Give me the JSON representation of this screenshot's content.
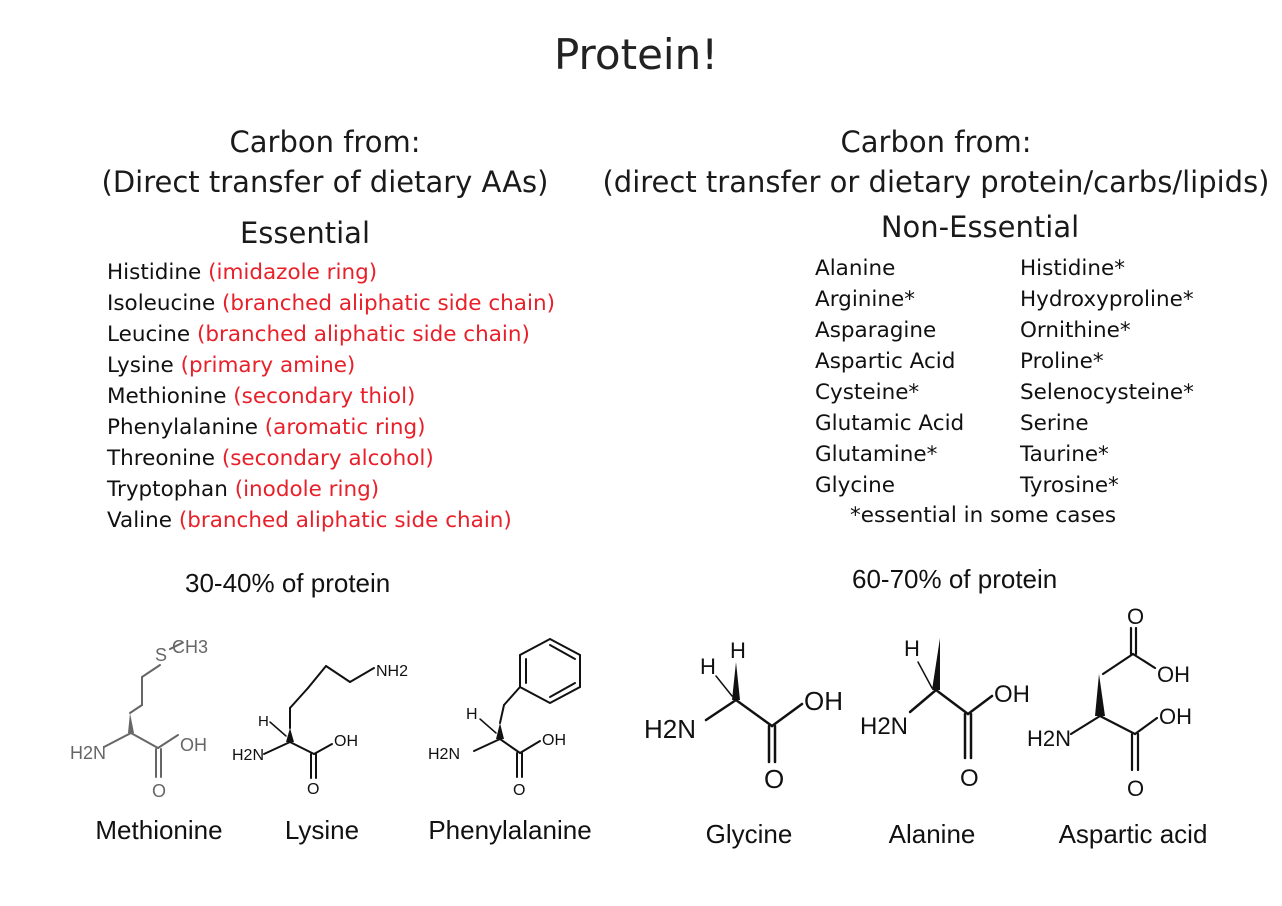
{
  "title": "Protein!",
  "left": {
    "header_line1": "Carbon from:",
    "header_line2": "(Direct transfer of dietary AAs)",
    "category": "Essential",
    "items": [
      {
        "name": "Histidine",
        "note": "(imidazole ring)"
      },
      {
        "name": "Isoleucine",
        "note": "(branched aliphatic side chain)"
      },
      {
        "name": "Leucine",
        "note": "(branched aliphatic side chain)"
      },
      {
        "name": "Lysine",
        "note": "(primary amine)"
      },
      {
        "name": "Methionine",
        "note": "(secondary thiol)"
      },
      {
        "name": "Phenylalanine",
        "note": "(aromatic ring)"
      },
      {
        "name": "Threonine",
        "note": "(secondary alcohol)"
      },
      {
        "name": "Tryptophan",
        "note": "(inodole ring)"
      },
      {
        "name": "Valine",
        "note": "(branched aliphatic side chain)"
      }
    ],
    "percent": "30-40% of protein",
    "molecules": [
      "Methionine",
      "Lysine",
      "Phenylalanine"
    ]
  },
  "right": {
    "header_line1": "Carbon from:",
    "header_line2": "(direct transfer or dietary protein/carbs/lipids)",
    "category": "Non-Essential",
    "col1": [
      "Alanine",
      "Arginine*",
      "Asparagine",
      "Aspartic Acid",
      "Cysteine*",
      "Glutamic Acid",
      "Glutamine*",
      "Glycine"
    ],
    "col2": [
      "Histidine*",
      "Hydroxyproline*",
      "Ornithine*",
      "Proline*",
      "Selenocysteine*",
      "Serine",
      "Taurine*",
      "Tyrosine*"
    ],
    "footnote": "*essential in some cases",
    "percent": "60-70% of protein",
    "molecules": [
      "Glycine",
      "Alanine",
      "Aspartic acid"
    ]
  },
  "colors": {
    "note": "#e8202a",
    "gray_structure": "#666666",
    "black_structure": "#111111"
  },
  "atom_labels": {
    "ch3": "CH3",
    "s": "S",
    "h2n": "H2N",
    "nh2": "NH2",
    "oh": "OH",
    "o": "O",
    "h": "H"
  }
}
